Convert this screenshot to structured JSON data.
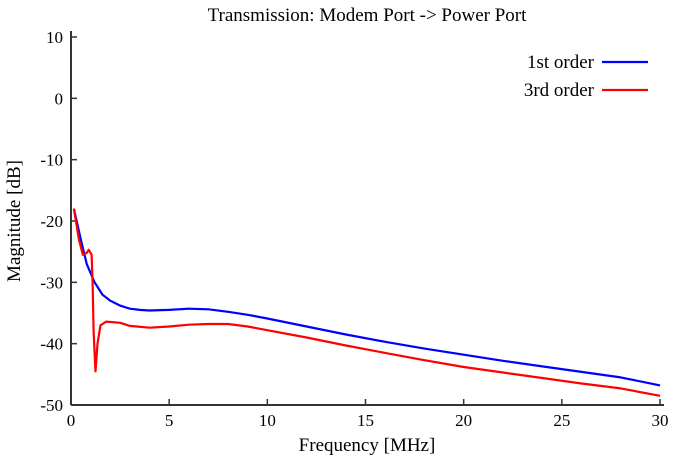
{
  "chart_data": {
    "type": "line",
    "title": "Transmission: Modem Port -> Power Port",
    "xlabel": "Frequency [MHz]",
    "ylabel": "Magnitude [dB]",
    "xlim": [
      0,
      30
    ],
    "ylim": [
      -50,
      10
    ],
    "xticks": [
      0,
      5,
      10,
      15,
      20,
      25,
      30
    ],
    "yticks": [
      10,
      0,
      -10,
      -20,
      -30,
      -40,
      -50
    ],
    "grid": false,
    "legend_position": "top-right",
    "series": [
      {
        "name": "1st order",
        "color": "#0000ff",
        "x": [
          0.15,
          0.5,
          0.8,
          1.2,
          1.6,
          2,
          2.5,
          3,
          3.5,
          4,
          5,
          6,
          7,
          8,
          9,
          10,
          12,
          14,
          16,
          18,
          20,
          22,
          24,
          26,
          28,
          30
        ],
        "y": [
          -18,
          -23,
          -27,
          -30,
          -32,
          -33,
          -33.8,
          -34.3,
          -34.5,
          -34.6,
          -34.5,
          -34.3,
          -34.4,
          -34.8,
          -35.3,
          -35.9,
          -37.2,
          -38.5,
          -39.7,
          -40.8,
          -41.8,
          -42.8,
          -43.7,
          -44.6,
          -45.5,
          -46.8
        ]
      },
      {
        "name": "3rd order",
        "color": "#ff0000",
        "x": [
          0.15,
          0.4,
          0.6,
          0.8,
          0.9,
          1.05,
          1.1,
          1.15,
          1.25,
          1.35,
          1.5,
          1.8,
          2.5,
          3,
          4,
          5,
          6,
          7,
          8,
          9,
          10,
          12,
          14,
          16,
          18,
          20,
          22,
          24,
          26,
          28,
          30
        ],
        "y": [
          -18,
          -23,
          -25.5,
          -25.2,
          -24.7,
          -25.5,
          -30,
          -38,
          -44.5,
          -40,
          -37,
          -36.4,
          -36.6,
          -37.1,
          -37.4,
          -37.2,
          -36.9,
          -36.8,
          -36.8,
          -37.2,
          -37.8,
          -39,
          -40.3,
          -41.5,
          -42.7,
          -43.8,
          -44.7,
          -45.6,
          -46.5,
          -47.3,
          -48.5
        ]
      }
    ]
  }
}
